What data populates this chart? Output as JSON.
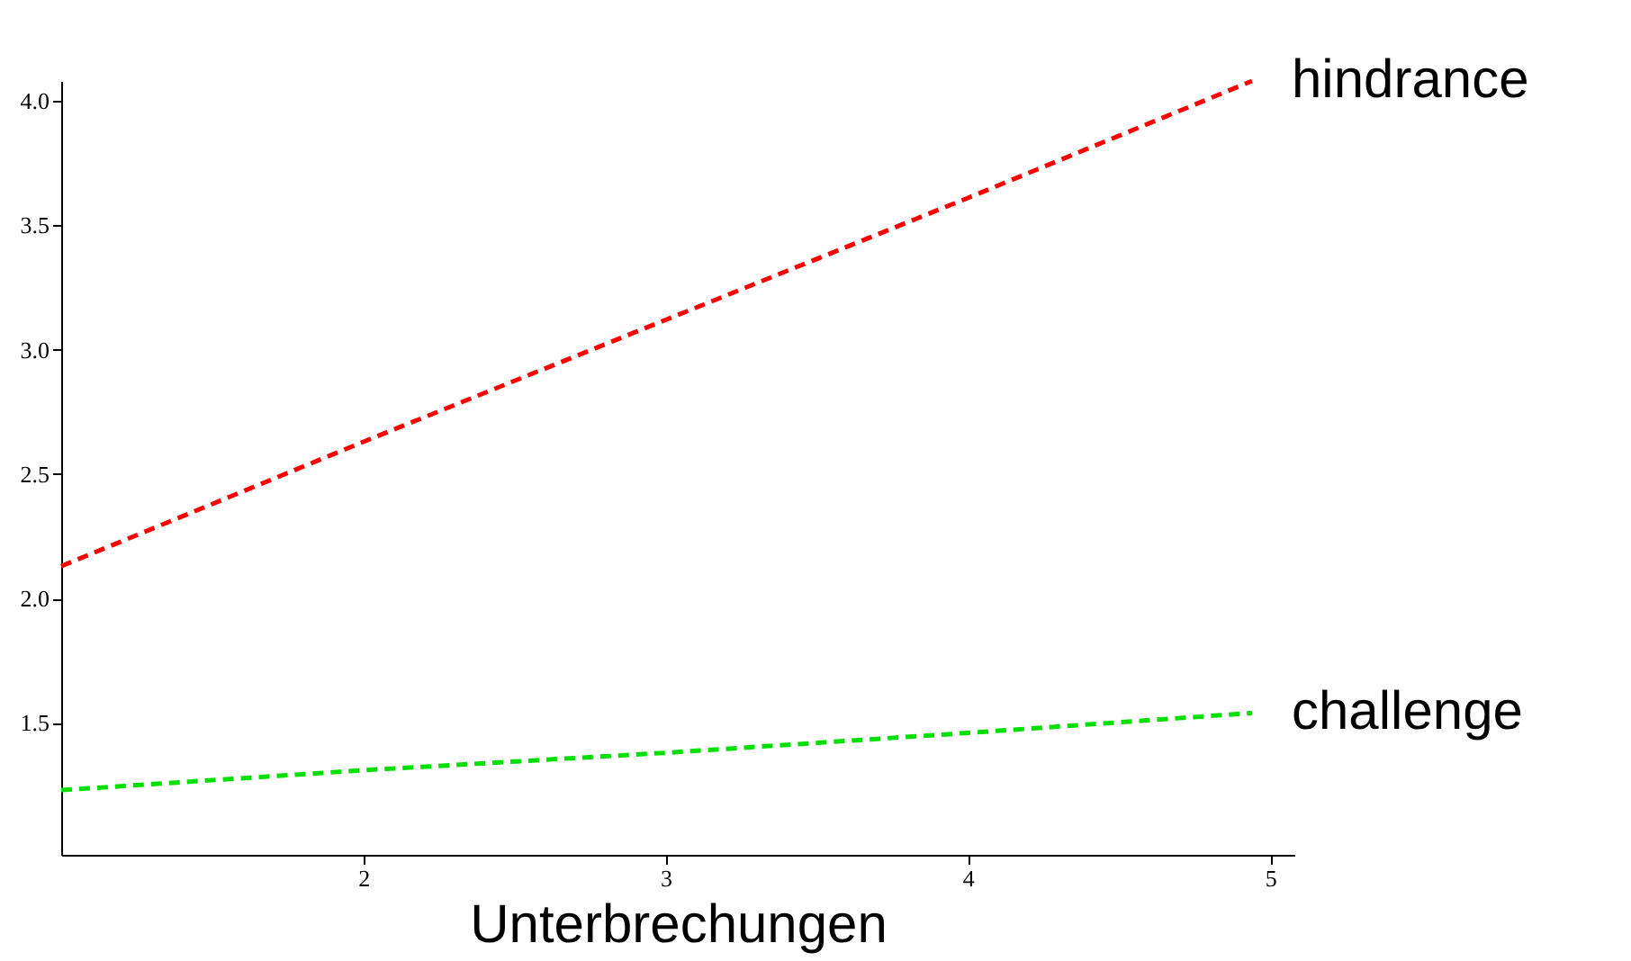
{
  "chart_data": {
    "type": "line",
    "xlabel": "Unterbrechungen",
    "x": [
      1,
      2,
      3,
      4,
      4.94
    ],
    "series": [
      {
        "name": "hindrance",
        "color": "#ff0000",
        "values": [
          2.13,
          2.63,
          3.12,
          3.61,
          4.08
        ]
      },
      {
        "name": "challenge",
        "color": "#00e000",
        "values": [
          1.23,
          1.31,
          1.38,
          1.46,
          1.54
        ]
      }
    ],
    "xlim": [
      1,
      5.08
    ],
    "ylim": [
      0.97,
      4.08
    ],
    "xticks": [
      2,
      3,
      4,
      5
    ],
    "yticks": [
      1.5,
      {
        "value": 2,
        "label": "2.0"
      },
      2.5,
      {
        "value": 3,
        "label": "3.0"
      },
      3.5,
      {
        "value": 4,
        "label": "4.0"
      }
    ],
    "line_style": "dashed",
    "marker": "none",
    "grid": false,
    "legend": false
  }
}
